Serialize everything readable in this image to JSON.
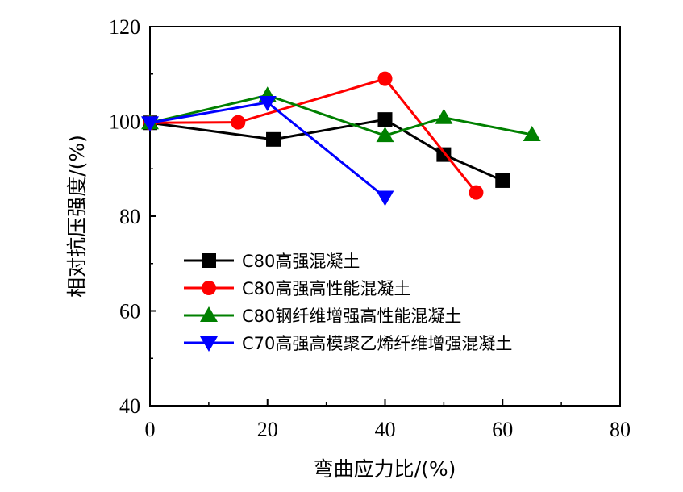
{
  "chart_data": {
    "type": "line",
    "title": "",
    "xlabel": "弯曲应力比/(%)",
    "ylabel": "相对抗压强度/(%)",
    "xlim": [
      0,
      80
    ],
    "ylim": [
      40,
      120
    ],
    "xticks": [
      0,
      20,
      40,
      60,
      80
    ],
    "yticks": [
      40,
      60,
      80,
      100,
      120
    ],
    "grid": false,
    "legend_position": "lower-left",
    "series": [
      {
        "name": "C80高强混凝土",
        "color": "#000000",
        "marker": "square",
        "x": [
          0,
          21,
          40,
          50,
          60
        ],
        "y": [
          99.7,
          96.2,
          100.4,
          93.0,
          87.5
        ]
      },
      {
        "name": "C80高强高性能混凝土",
        "color": "#ff0000",
        "marker": "circle",
        "x": [
          0,
          15,
          40,
          55.5
        ],
        "y": [
          99.7,
          99.8,
          109.0,
          85.0
        ]
      },
      {
        "name": "C80钢纤维增强高性能混凝土",
        "color": "#008000",
        "marker": "triangle-up",
        "x": [
          0,
          20,
          40,
          50,
          65
        ],
        "y": [
          99.7,
          105.5,
          97.0,
          100.8,
          97.2
        ]
      },
      {
        "name": "C70高强高模聚乙烯纤维增强混凝土",
        "color": "#0000ff",
        "marker": "triangle-down",
        "x": [
          0,
          20,
          40
        ],
        "y": [
          99.7,
          104.0,
          84.0
        ]
      }
    ]
  }
}
